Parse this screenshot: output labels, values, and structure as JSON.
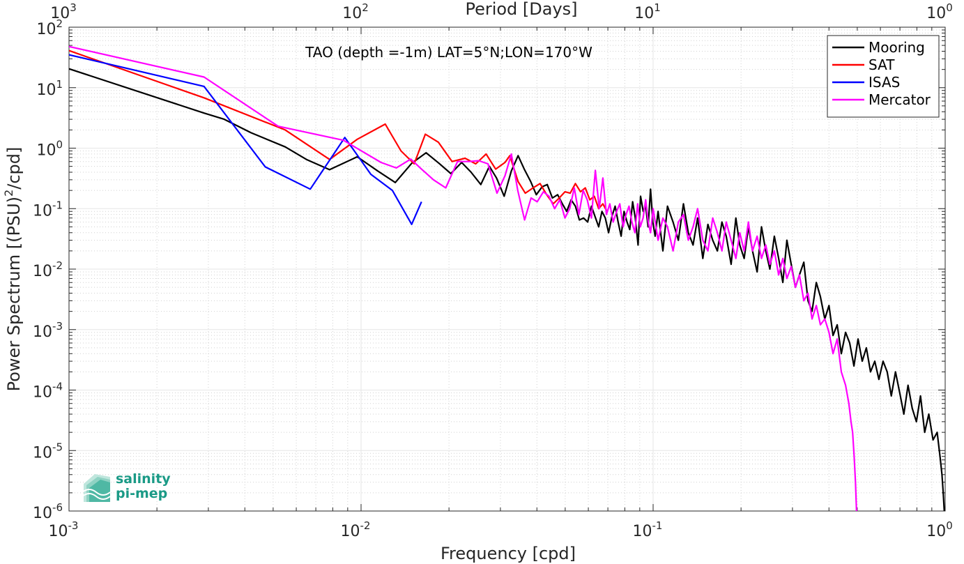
{
  "chart_data": {
    "type": "line",
    "title": "TAO (depth =-1m) LAT=5°N;LON=170°W",
    "xlabel": "Frequency [cpd]",
    "ylabel": "Power Spectrum [(PSU)",
    "ylabel_exp": "2",
    "ylabel_suffix": "/cpd]",
    "top_xlabel": "Period [Days]",
    "xscale": "log",
    "yscale": "log",
    "xlim": [
      0.001,
      1
    ],
    "ylim": [
      1e-06,
      100
    ],
    "grid": true,
    "legend_position": "top-right",
    "x_ticks": [
      {
        "value": 0.001,
        "base": "10",
        "exp": "-3"
      },
      {
        "value": 0.01,
        "base": "10",
        "exp": "-2"
      },
      {
        "value": 0.1,
        "base": "10",
        "exp": "-1"
      },
      {
        "value": 1,
        "base": "10",
        "exp": "0"
      }
    ],
    "top_ticks": [
      {
        "value": 0.001,
        "base": "10",
        "exp": "3"
      },
      {
        "value": 0.01,
        "base": "10",
        "exp": "2"
      },
      {
        "value": 0.1,
        "base": "10",
        "exp": "1"
      },
      {
        "value": 1,
        "base": "10",
        "exp": "0"
      }
    ],
    "y_ticks": [
      {
        "value": 100,
        "base": "10",
        "exp": "2"
      },
      {
        "value": 10,
        "base": "10",
        "exp": "1"
      },
      {
        "value": 1,
        "base": "10",
        "exp": "0"
      },
      {
        "value": 0.1,
        "base": "10",
        "exp": "-1"
      },
      {
        "value": 0.01,
        "base": "10",
        "exp": "-2"
      },
      {
        "value": 0.001,
        "base": "10",
        "exp": "-3"
      },
      {
        "value": 0.0001,
        "base": "10",
        "exp": "-4"
      },
      {
        "value": 1e-05,
        "base": "10",
        "exp": "-5"
      },
      {
        "value": 1e-06,
        "base": "10",
        "exp": "-6"
      }
    ],
    "series": [
      {
        "name": "Mooring",
        "color": "#000000",
        "x": [
          0.001,
          0.0029,
          0.0034,
          0.0042,
          0.0055,
          0.0065,
          0.0078,
          0.0097,
          0.0114,
          0.0131,
          0.0149,
          0.0167,
          0.0185,
          0.0203,
          0.0221,
          0.0238,
          0.0257,
          0.0275,
          0.0291,
          0.0309,
          0.0327,
          0.0345,
          0.0362,
          0.0381,
          0.0398,
          0.0417,
          0.0434,
          0.0452,
          0.0471,
          0.0489,
          0.0506,
          0.0524,
          0.0542,
          0.0559,
          0.0578,
          0.0597,
          0.0615,
          0.0632,
          0.0651,
          0.0668,
          0.0686,
          0.0704,
          0.0723,
          0.0741,
          0.0759,
          0.0777,
          0.0795,
          0.0814,
          0.0832,
          0.0851,
          0.0869,
          0.0888,
          0.0906,
          0.0925,
          0.0943,
          0.0961,
          0.098,
          0.0998,
          0.1016,
          0.104,
          0.108,
          0.112,
          0.117,
          0.122,
          0.127,
          0.132,
          0.137,
          0.142,
          0.148,
          0.154,
          0.16,
          0.166,
          0.172,
          0.178,
          0.185,
          0.192,
          0.198,
          0.205,
          0.212,
          0.219,
          0.227,
          0.235,
          0.243,
          0.251,
          0.26,
          0.269,
          0.278,
          0.287,
          0.297,
          0.307,
          0.317,
          0.328,
          0.339,
          0.35,
          0.362,
          0.374,
          0.387,
          0.4,
          0.413,
          0.427,
          0.441,
          0.456,
          0.471,
          0.487,
          0.503,
          0.52,
          0.537,
          0.555,
          0.574,
          0.593,
          0.613,
          0.633,
          0.654,
          0.676,
          0.699,
          0.722,
          0.746,
          0.771,
          0.797,
          0.823,
          0.851,
          0.879,
          0.909,
          0.939,
          0.96,
          0.975,
          0.985,
          0.993
        ],
        "y": [
          20.5,
          3.8,
          3.0,
          1.8,
          1.05,
          0.65,
          0.44,
          0.72,
          0.42,
          0.27,
          0.56,
          0.84,
          0.56,
          0.38,
          0.58,
          0.4,
          0.25,
          0.5,
          0.32,
          0.16,
          0.42,
          0.75,
          0.45,
          0.28,
          0.17,
          0.23,
          0.25,
          0.15,
          0.17,
          0.12,
          0.09,
          0.14,
          0.11,
          0.065,
          0.07,
          0.06,
          0.11,
          0.075,
          0.05,
          0.09,
          0.07,
          0.04,
          0.075,
          0.11,
          0.06,
          0.035,
          0.09,
          0.06,
          0.045,
          0.13,
          0.07,
          0.025,
          0.16,
          0.09,
          0.11,
          0.05,
          0.21,
          0.06,
          0.035,
          0.09,
          0.02,
          0.11,
          0.06,
          0.03,
          0.12,
          0.04,
          0.025,
          0.07,
          0.015,
          0.055,
          0.03,
          0.02,
          0.06,
          0.035,
          0.012,
          0.07,
          0.025,
          0.015,
          0.05,
          0.02,
          0.009,
          0.05,
          0.02,
          0.01,
          0.035,
          0.015,
          0.006,
          0.03,
          0.012,
          0.005,
          0.008,
          0.013,
          0.003,
          0.002,
          0.006,
          0.0035,
          0.0015,
          0.0025,
          0.0008,
          0.0012,
          0.0004,
          0.0009,
          0.0006,
          0.00025,
          0.0007,
          0.0003,
          0.0005,
          0.0002,
          0.0003,
          0.00015,
          0.0003,
          0.0002,
          8e-05,
          0.0002,
          9e-05,
          4e-05,
          0.00012,
          5e-05,
          3e-05,
          8e-05,
          2e-05,
          4e-05,
          1.5e-05,
          2e-05,
          8e-06,
          4e-06,
          2e-06,
          1e-06
        ]
      },
      {
        "name": "SAT",
        "color": "#ff0000",
        "x": [
          0.001,
          0.0029,
          0.0055,
          0.0078,
          0.0097,
          0.0121,
          0.0137,
          0.0152,
          0.0166,
          0.0184,
          0.0205,
          0.0227,
          0.0247,
          0.0268,
          0.0289,
          0.0311,
          0.0323,
          0.0345,
          0.0365,
          0.0388,
          0.041,
          0.0432,
          0.0455,
          0.0477,
          0.0499,
          0.052,
          0.0542,
          0.0564,
          0.0586,
          0.0607,
          0.0629,
          0.0651,
          0.0673,
          0.0695
        ],
        "y": [
          41,
          6.8,
          2.0,
          0.65,
          1.4,
          2.5,
          0.9,
          0.55,
          1.7,
          1.25,
          0.6,
          0.68,
          0.55,
          0.8,
          0.45,
          0.58,
          0.75,
          0.28,
          0.18,
          0.22,
          0.26,
          0.17,
          0.12,
          0.15,
          0.19,
          0.18,
          0.26,
          0.19,
          0.22,
          0.14,
          0.16,
          0.1,
          0.12,
          0.09
        ]
      },
      {
        "name": "ISAS",
        "color": "#0000ff",
        "x": [
          0.001,
          0.0029,
          0.0047,
          0.0067,
          0.0088,
          0.0108,
          0.0128,
          0.0149,
          0.0161
        ],
        "y": [
          35,
          10.5,
          0.49,
          0.21,
          1.5,
          0.37,
          0.2,
          0.055,
          0.13
        ]
      },
      {
        "name": "Mercator",
        "color": "#ff00ff",
        "x": [
          0.001,
          0.0029,
          0.0052,
          0.0087,
          0.0117,
          0.0132,
          0.0148,
          0.0161,
          0.0177,
          0.0195,
          0.0214,
          0.0234,
          0.0253,
          0.0272,
          0.0292,
          0.0311,
          0.0327,
          0.0344,
          0.0363,
          0.0382,
          0.0401,
          0.0421,
          0.044,
          0.046,
          0.0479,
          0.0499,
          0.0518,
          0.0537,
          0.0557,
          0.0576,
          0.0595,
          0.0615,
          0.0634,
          0.0654,
          0.0673,
          0.0692,
          0.0711,
          0.073,
          0.075,
          0.0769,
          0.0789,
          0.0808,
          0.0827,
          0.0846,
          0.0866,
          0.0885,
          0.0904,
          0.0924,
          0.0943,
          0.0962,
          0.098,
          0.1,
          0.104,
          0.108,
          0.112,
          0.117,
          0.122,
          0.127,
          0.132,
          0.137,
          0.142,
          0.148,
          0.154,
          0.16,
          0.166,
          0.172,
          0.178,
          0.185,
          0.192,
          0.198,
          0.205,
          0.212,
          0.219,
          0.227,
          0.235,
          0.243,
          0.251,
          0.26,
          0.269,
          0.278,
          0.287,
          0.297,
          0.307,
          0.317,
          0.328,
          0.339,
          0.35,
          0.362,
          0.374,
          0.387,
          0.4,
          0.413,
          0.427,
          0.441,
          0.456,
          0.468,
          0.476,
          0.482,
          0.488,
          0.493,
          0.497
        ],
        "y": [
          48,
          15,
          2.3,
          1.35,
          0.58,
          0.47,
          0.66,
          0.45,
          0.3,
          0.22,
          0.6,
          0.6,
          0.62,
          0.55,
          0.18,
          0.35,
          0.8,
          0.2,
          0.065,
          0.15,
          0.13,
          0.19,
          0.16,
          0.1,
          0.14,
          0.07,
          0.1,
          0.22,
          0.08,
          0.2,
          0.14,
          0.07,
          0.43,
          0.1,
          0.32,
          0.08,
          0.12,
          0.06,
          0.09,
          0.12,
          0.05,
          0.08,
          0.11,
          0.06,
          0.04,
          0.12,
          0.05,
          0.07,
          0.14,
          0.06,
          0.04,
          0.1,
          0.03,
          0.07,
          0.05,
          0.02,
          0.06,
          0.08,
          0.03,
          0.05,
          0.1,
          0.03,
          0.02,
          0.07,
          0.04,
          0.02,
          0.06,
          0.03,
          0.015,
          0.04,
          0.02,
          0.06,
          0.02,
          0.035,
          0.015,
          0.025,
          0.012,
          0.02,
          0.008,
          0.015,
          0.007,
          0.011,
          0.005,
          0.008,
          0.003,
          0.004,
          0.0015,
          0.0025,
          0.0012,
          0.0015,
          0.0009,
          0.0004,
          0.0007,
          0.0002,
          0.00012,
          6e-05,
          3e-05,
          2e-05,
          8e-06,
          3e-06,
          1e-06
        ]
      }
    ]
  },
  "logo": {
    "line1": "salinity",
    "line2": "pi-mep",
    "color": "#1a9a86"
  }
}
